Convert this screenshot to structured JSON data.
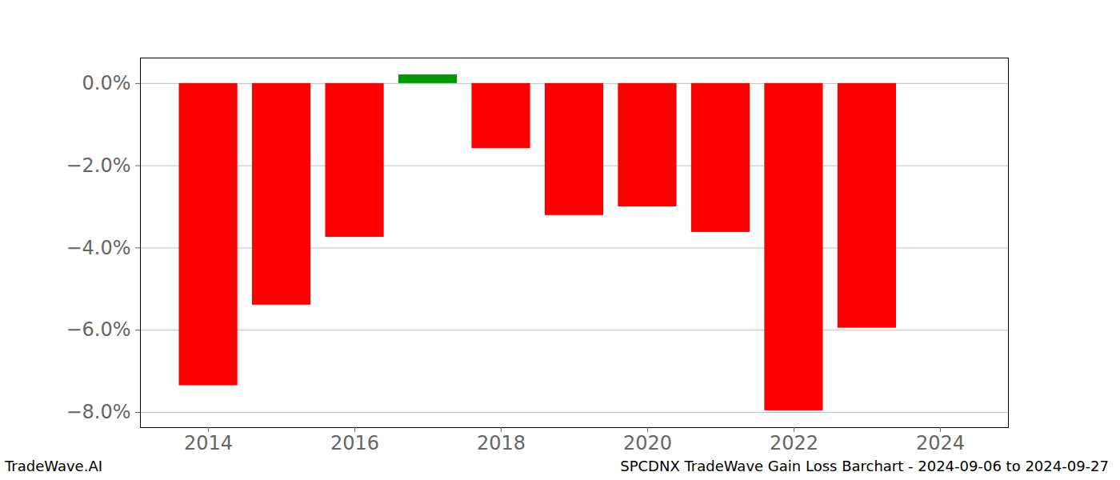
{
  "chart_data": {
    "type": "bar",
    "title": "SPCDNX TradeWave Gain Loss Barchart - 2024-09-06 to 2024-09-27",
    "annotations": [
      "TradeWave.AI"
    ],
    "x": [
      2014,
      2015,
      2016,
      2017,
      2018,
      2019,
      2020,
      2021,
      2022,
      2023
    ],
    "values": [
      -7.35,
      -5.39,
      -3.74,
      0.21,
      -1.58,
      -3.21,
      -3.0,
      -3.62,
      -7.96,
      -5.95
    ],
    "colors": [
      "#ff0000",
      "#ff0000",
      "#ff0000",
      "#009900",
      "#ff0000",
      "#ff0000",
      "#ff0000",
      "#ff0000",
      "#ff0000",
      "#ff0000"
    ],
    "xlim": [
      2013.07,
      2024.93
    ],
    "xticks": [
      2014,
      2016,
      2018,
      2020,
      2022,
      2024
    ],
    "ylim": [
      -8.37,
      0.62
    ],
    "yticks": [
      {
        "value": 0,
        "label": "0.0%"
      },
      {
        "value": -2,
        "label": "−2.0%"
      },
      {
        "value": -4,
        "label": "−4.0%"
      },
      {
        "value": -6,
        "label": "−6.0%"
      },
      {
        "value": -8,
        "label": "−8.0%"
      }
    ],
    "grid": true
  }
}
